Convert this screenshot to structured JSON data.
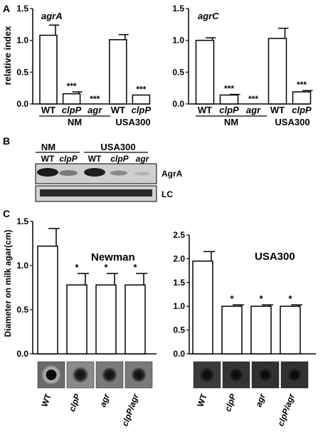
{
  "panel_labels": [
    "A",
    "B",
    "C"
  ],
  "panel_a": {
    "ylabel": "relative index",
    "yticks": [
      "0.0",
      "0.5",
      "1.0",
      "1.5"
    ],
    "categories": [
      "WT",
      "clpP",
      "agr",
      "WT",
      "clpP"
    ],
    "group_labels": [
      "NM",
      "USA300"
    ]
  },
  "panel_b": {
    "group_labels": [
      "NM",
      "USA300"
    ],
    "lane_labels": [
      "WT",
      "clpP",
      "WT",
      "clpP",
      "agr"
    ],
    "row_labels": [
      "AgrA",
      "LC"
    ]
  },
  "panel_c": {
    "ylabel": "Diameter on milk agar(cm)",
    "left_yticks": [
      "0.0",
      "0.5",
      "1.0",
      "1.5"
    ],
    "right_yticks": [
      "0.0",
      "0.5",
      "1.0",
      "1.5",
      "2.0",
      "2.5"
    ],
    "categories": [
      "WT",
      "clpP",
      "agr",
      "clpP/agr"
    ]
  },
  "chart_data": [
    {
      "type": "bar",
      "title": "agrA",
      "ylabel": "relative index",
      "ylim": [
        0,
        1.5
      ],
      "categories": [
        "WT",
        "clpP",
        "agr",
        "WT",
        "clpP"
      ],
      "groups": [
        "NM",
        "NM",
        "NM",
        "USA300",
        "USA300"
      ],
      "values": [
        1.08,
        0.16,
        0.0,
        1.01,
        0.14
      ],
      "errors": [
        0.16,
        0.03,
        0.0,
        0.08,
        0.0
      ],
      "annotations": [
        "",
        "***",
        "***",
        "",
        "***"
      ]
    },
    {
      "type": "bar",
      "title": "agrC",
      "ylabel": "",
      "ylim": [
        0,
        1.5
      ],
      "categories": [
        "WT",
        "clpP",
        "agr",
        "WT",
        "clpP"
      ],
      "groups": [
        "NM",
        "NM",
        "NM",
        "USA300",
        "USA300"
      ],
      "values": [
        1.0,
        0.14,
        0.0,
        1.03,
        0.19
      ],
      "errors": [
        0.04,
        0.01,
        0.0,
        0.16,
        0.02
      ],
      "annotations": [
        "",
        "***",
        "***",
        "",
        "***"
      ]
    },
    {
      "type": "bar",
      "title": "Newman",
      "ylabel": "Diameter on milk agar(cm)",
      "ylim": [
        0,
        1.5
      ],
      "categories": [
        "WT",
        "clpP",
        "agr",
        "clpP/agr"
      ],
      "values": [
        1.22,
        0.78,
        0.78,
        0.78
      ],
      "errors": [
        0.2,
        0.13,
        0.13,
        0.13
      ],
      "annotations": [
        "",
        "*",
        "*",
        "*"
      ]
    },
    {
      "type": "bar",
      "title": "USA300",
      "ylabel": "",
      "ylim": [
        0,
        2.5
      ],
      "categories": [
        "WT",
        "clpP",
        "agr",
        "clpP/agr"
      ],
      "values": [
        1.95,
        1.0,
        1.0,
        1.0
      ],
      "errors": [
        0.2,
        0.03,
        0.03,
        0.03
      ],
      "annotations": [
        "",
        "*",
        "*",
        "*"
      ]
    }
  ]
}
